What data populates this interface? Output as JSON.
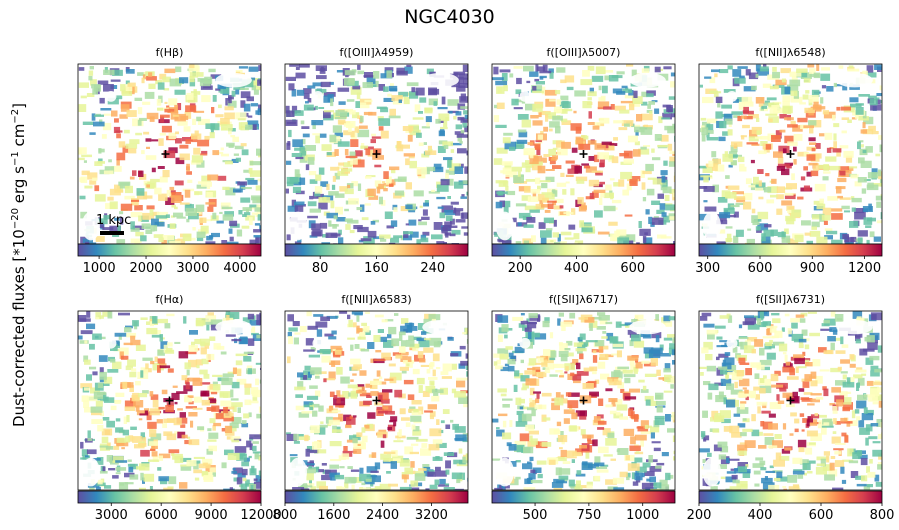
{
  "chart_data": {
    "type": "heatmap",
    "title": "NGC4030",
    "ylabel_main": "Dust-corrected fluxes [*10",
    "ylabel_exp1": "−20",
    "ylabel_mid": " erg s",
    "ylabel_exp2": "−1",
    "ylabel_mid2": " cm",
    "ylabel_exp3": "−2",
    "ylabel_end": "]",
    "colormap": "Spectral_r",
    "scalebar_label": "1 kpc",
    "panels": [
      {
        "title": "f(Hβ)",
        "vmin": 550,
        "vmax": 4450,
        "ticks": [
          1000,
          2000,
          3000,
          4000
        ],
        "tick_labels": [
          "1000",
          "2000",
          "3000",
          "4000"
        ]
      },
      {
        "title": "f([OIII]λ4959)",
        "vmin": 30,
        "vmax": 290,
        "ticks": [
          80,
          160,
          240
        ],
        "tick_labels": [
          "80",
          "160",
          "240"
        ]
      },
      {
        "title": "f([OIII]λ5007)",
        "vmin": 100,
        "vmax": 750,
        "ticks": [
          200,
          400,
          600
        ],
        "tick_labels": [
          "200",
          "400",
          "600"
        ]
      },
      {
        "title": "f([NII]λ6548)",
        "vmin": 250,
        "vmax": 1300,
        "ticks": [
          300,
          600,
          900,
          1200
        ],
        "tick_labels": [
          "300",
          "600",
          "900",
          "1200"
        ]
      },
      {
        "title": "f(Hα)",
        "vmin": 1000,
        "vmax": 12000,
        "ticks": [
          3000,
          6000,
          9000,
          12000
        ],
        "tick_labels": [
          "3000",
          "6000",
          "9000",
          "12000"
        ]
      },
      {
        "title": "f([NII]λ6583)",
        "vmin": 800,
        "vmax": 3800,
        "ticks": [
          800,
          1600,
          2400,
          3200
        ],
        "tick_labels": [
          "800",
          "1600",
          "2400",
          "3200"
        ]
      },
      {
        "title": "f([SII]λ6717)",
        "vmin": 300,
        "vmax": 1150,
        "ticks": [
          500,
          750,
          1000
        ],
        "tick_labels": [
          "500",
          "750",
          "1000"
        ]
      },
      {
        "title": "f([SII]λ6731)",
        "vmin": 200,
        "vmax": 800,
        "ticks": [
          200,
          400,
          600,
          800
        ],
        "tick_labels": [
          "200",
          "400",
          "600",
          "800"
        ]
      }
    ]
  },
  "colors": {
    "cmap": [
      "#5e4fa2",
      "#3288bd",
      "#66c2a5",
      "#abdda4",
      "#e6f598",
      "#ffffbf",
      "#fee08b",
      "#fdae61",
      "#f46d43",
      "#d53e4f",
      "#9e0142"
    ],
    "map_base": "#d53e4f",
    "center_marker": "#000000"
  }
}
